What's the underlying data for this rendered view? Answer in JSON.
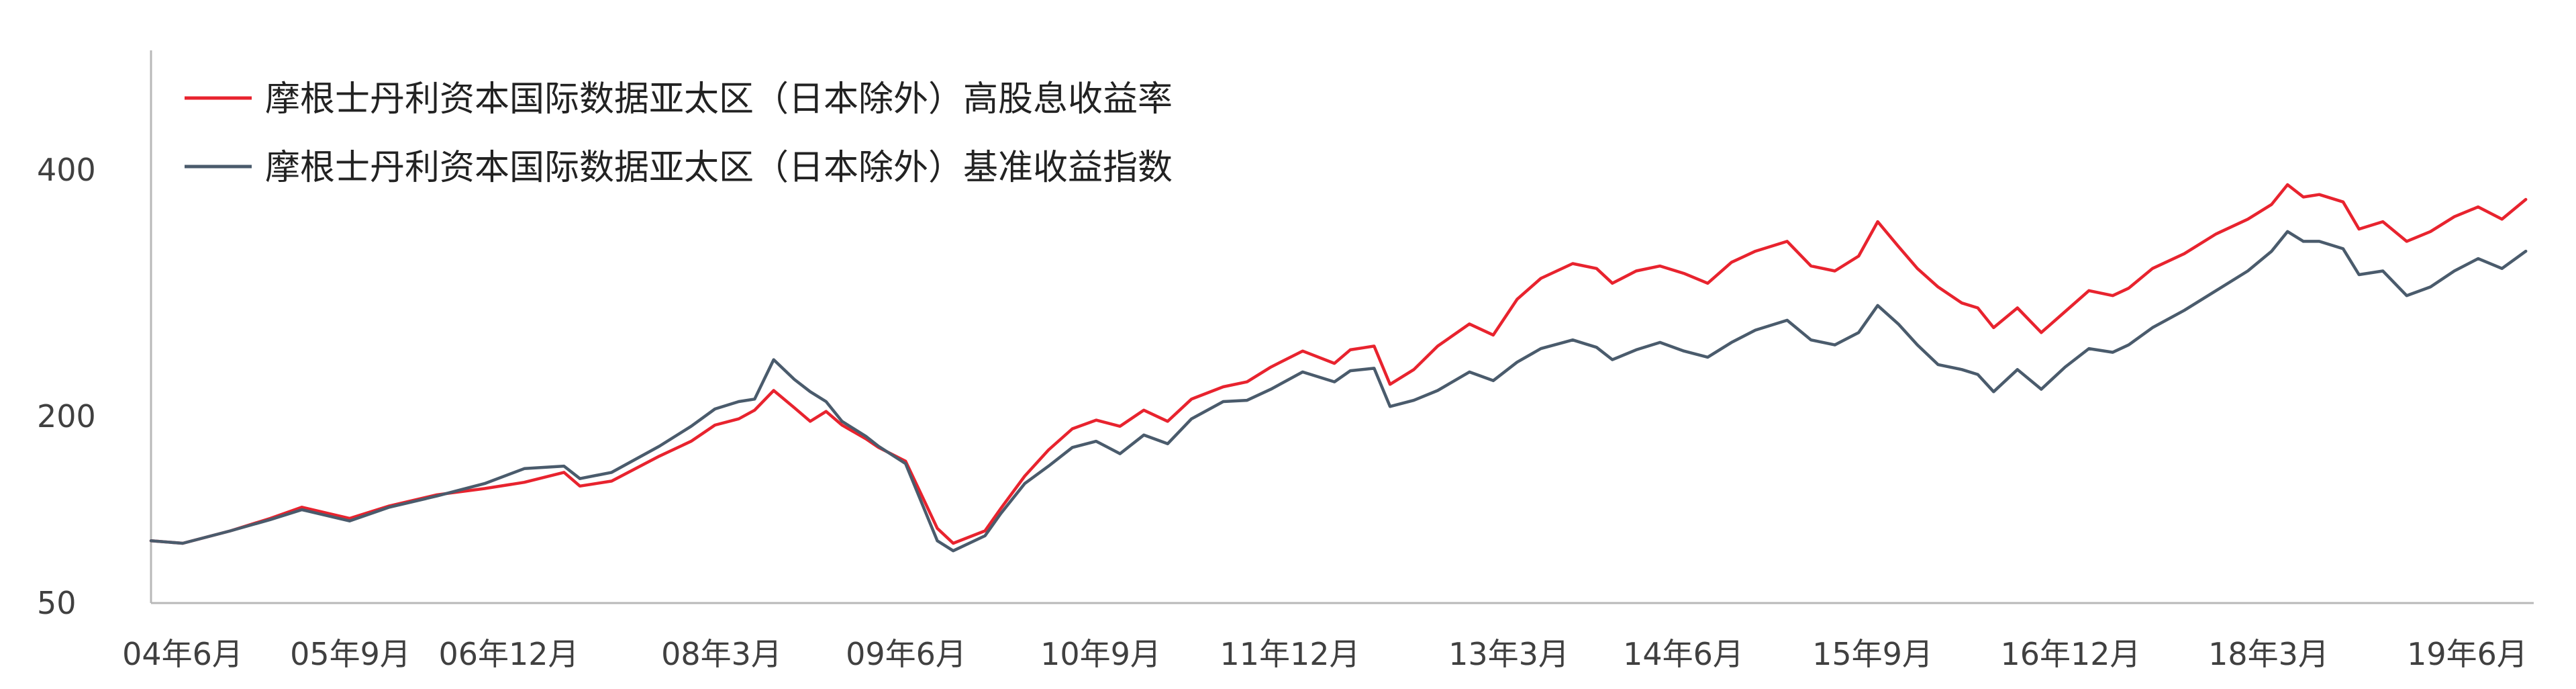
{
  "chart_data": {
    "type": "line",
    "title": "",
    "xlabel": "",
    "ylabel": "",
    "x_tick_labels": [
      "04年6月",
      "05年9月",
      "06年12月",
      "08年3月",
      "09年6月",
      "10年9月",
      "11年12月",
      "13年3月",
      "14年6月",
      "15年9月",
      "16年12月",
      "18年3月",
      "19年6月"
    ],
    "y_tick_labels": [
      "50",
      "200",
      "400"
    ],
    "y_ticks": [
      50,
      200,
      400
    ],
    "ylim": [
      50,
      500
    ],
    "xlim": [
      2004.5,
      2019.5
    ],
    "grid": false,
    "legend_position": "top-left",
    "series": [
      {
        "name": "摩根士丹利资本国际数据亚太区（日本除外）高股息收益率",
        "color": "#e8232e",
        "points": [
          [
            2004.5,
            100
          ],
          [
            2004.7,
            98
          ],
          [
            2005.0,
            108
          ],
          [
            2005.25,
            118
          ],
          [
            2005.45,
            127
          ],
          [
            2005.75,
            118
          ],
          [
            2006.0,
            128
          ],
          [
            2006.3,
            137
          ],
          [
            2006.6,
            142
          ],
          [
            2006.85,
            147
          ],
          [
            2007.1,
            155
          ],
          [
            2007.2,
            144
          ],
          [
            2007.4,
            148
          ],
          [
            2007.7,
            168
          ],
          [
            2007.9,
            180
          ],
          [
            2008.05,
            193
          ],
          [
            2008.2,
            198
          ],
          [
            2008.3,
            205
          ],
          [
            2008.42,
            221
          ],
          [
            2008.55,
            207
          ],
          [
            2008.65,
            196
          ],
          [
            2008.75,
            204
          ],
          [
            2008.85,
            193
          ],
          [
            2009.0,
            182
          ],
          [
            2009.08,
            175
          ],
          [
            2009.25,
            164
          ],
          [
            2009.45,
            110
          ],
          [
            2009.55,
            98
          ],
          [
            2009.75,
            108
          ],
          [
            2009.85,
            126
          ],
          [
            2010.0,
            152
          ],
          [
            2010.15,
            173
          ],
          [
            2010.3,
            190
          ],
          [
            2010.45,
            197
          ],
          [
            2010.6,
            192
          ],
          [
            2010.75,
            205
          ],
          [
            2010.9,
            196
          ],
          [
            2011.05,
            214
          ],
          [
            2011.25,
            224
          ],
          [
            2011.4,
            228
          ],
          [
            2011.55,
            240
          ],
          [
            2011.75,
            253
          ],
          [
            2011.95,
            243
          ],
          [
            2012.05,
            254
          ],
          [
            2012.2,
            257
          ],
          [
            2012.3,
            226
          ],
          [
            2012.45,
            238
          ],
          [
            2012.6,
            257
          ],
          [
            2012.8,
            275
          ],
          [
            2012.95,
            266
          ],
          [
            2013.1,
            295
          ],
          [
            2013.25,
            312
          ],
          [
            2013.45,
            324
          ],
          [
            2013.6,
            320
          ],
          [
            2013.7,
            308
          ],
          [
            2013.85,
            318
          ],
          [
            2014.0,
            322
          ],
          [
            2014.15,
            316
          ],
          [
            2014.3,
            308
          ],
          [
            2014.45,
            325
          ],
          [
            2014.6,
            334
          ],
          [
            2014.8,
            342
          ],
          [
            2014.95,
            322
          ],
          [
            2015.1,
            318
          ],
          [
            2015.25,
            330
          ],
          [
            2015.37,
            358
          ],
          [
            2015.5,
            338
          ],
          [
            2015.62,
            320
          ],
          [
            2015.75,
            305
          ],
          [
            2015.9,
            292
          ],
          [
            2016.0,
            288
          ],
          [
            2016.1,
            272
          ],
          [
            2016.25,
            288
          ],
          [
            2016.4,
            268
          ],
          [
            2016.55,
            285
          ],
          [
            2016.7,
            302
          ],
          [
            2016.85,
            298
          ],
          [
            2016.95,
            304
          ],
          [
            2017.1,
            320
          ],
          [
            2017.3,
            332
          ],
          [
            2017.5,
            348
          ],
          [
            2017.7,
            360
          ],
          [
            2017.85,
            372
          ],
          [
            2017.95,
            388
          ],
          [
            2018.05,
            378
          ],
          [
            2018.15,
            380
          ],
          [
            2018.3,
            374
          ],
          [
            2018.4,
            352
          ],
          [
            2018.55,
            358
          ],
          [
            2018.7,
            342
          ],
          [
            2018.85,
            350
          ],
          [
            2019.0,
            362
          ],
          [
            2019.15,
            370
          ],
          [
            2019.3,
            360
          ],
          [
            2019.45,
            376
          ]
        ]
      },
      {
        "name": "摩根士丹利资本国际数据亚太区（日本除外）基准收益指数",
        "color": "#4a5b6c",
        "points": [
          [
            2004.5,
            100
          ],
          [
            2004.7,
            98
          ],
          [
            2005.0,
            108
          ],
          [
            2005.25,
            117
          ],
          [
            2005.45,
            125
          ],
          [
            2005.75,
            116
          ],
          [
            2006.0,
            127
          ],
          [
            2006.3,
            136
          ],
          [
            2006.6,
            146
          ],
          [
            2006.85,
            158
          ],
          [
            2007.1,
            160
          ],
          [
            2007.2,
            150
          ],
          [
            2007.4,
            155
          ],
          [
            2007.7,
            176
          ],
          [
            2007.9,
            192
          ],
          [
            2008.05,
            206
          ],
          [
            2008.2,
            212
          ],
          [
            2008.3,
            214
          ],
          [
            2008.42,
            246
          ],
          [
            2008.55,
            230
          ],
          [
            2008.65,
            220
          ],
          [
            2008.75,
            212
          ],
          [
            2008.85,
            196
          ],
          [
            2009.0,
            184
          ],
          [
            2009.08,
            176
          ],
          [
            2009.25,
            162
          ],
          [
            2009.45,
            100
          ],
          [
            2009.55,
            92
          ],
          [
            2009.75,
            104
          ],
          [
            2009.85,
            122
          ],
          [
            2010.0,
            146
          ],
          [
            2010.15,
            160
          ],
          [
            2010.3,
            175
          ],
          [
            2010.45,
            180
          ],
          [
            2010.6,
            170
          ],
          [
            2010.75,
            185
          ],
          [
            2010.9,
            178
          ],
          [
            2011.05,
            198
          ],
          [
            2011.25,
            212
          ],
          [
            2011.4,
            213
          ],
          [
            2011.55,
            222
          ],
          [
            2011.75,
            236
          ],
          [
            2011.95,
            228
          ],
          [
            2012.05,
            237
          ],
          [
            2012.2,
            239
          ],
          [
            2012.3,
            208
          ],
          [
            2012.45,
            213
          ],
          [
            2012.6,
            221
          ],
          [
            2012.8,
            236
          ],
          [
            2012.95,
            229
          ],
          [
            2013.1,
            244
          ],
          [
            2013.25,
            255
          ],
          [
            2013.45,
            262
          ],
          [
            2013.6,
            256
          ],
          [
            2013.7,
            246
          ],
          [
            2013.85,
            254
          ],
          [
            2014.0,
            260
          ],
          [
            2014.15,
            253
          ],
          [
            2014.3,
            248
          ],
          [
            2014.45,
            260
          ],
          [
            2014.6,
            270
          ],
          [
            2014.8,
            278
          ],
          [
            2014.95,
            262
          ],
          [
            2015.1,
            258
          ],
          [
            2015.25,
            268
          ],
          [
            2015.37,
            290
          ],
          [
            2015.5,
            275
          ],
          [
            2015.62,
            258
          ],
          [
            2015.75,
            242
          ],
          [
            2015.9,
            238
          ],
          [
            2016.0,
            234
          ],
          [
            2016.1,
            220
          ],
          [
            2016.25,
            238
          ],
          [
            2016.4,
            222
          ],
          [
            2016.55,
            240
          ],
          [
            2016.7,
            255
          ],
          [
            2016.85,
            252
          ],
          [
            2016.95,
            258
          ],
          [
            2017.1,
            272
          ],
          [
            2017.3,
            286
          ],
          [
            2017.5,
            302
          ],
          [
            2017.7,
            318
          ],
          [
            2017.85,
            334
          ],
          [
            2017.95,
            350
          ],
          [
            2018.05,
            342
          ],
          [
            2018.15,
            342
          ],
          [
            2018.3,
            336
          ],
          [
            2018.4,
            315
          ],
          [
            2018.55,
            318
          ],
          [
            2018.7,
            298
          ],
          [
            2018.85,
            305
          ],
          [
            2019.0,
            318
          ],
          [
            2019.15,
            328
          ],
          [
            2019.3,
            320
          ],
          [
            2019.45,
            334
          ]
        ]
      }
    ]
  }
}
